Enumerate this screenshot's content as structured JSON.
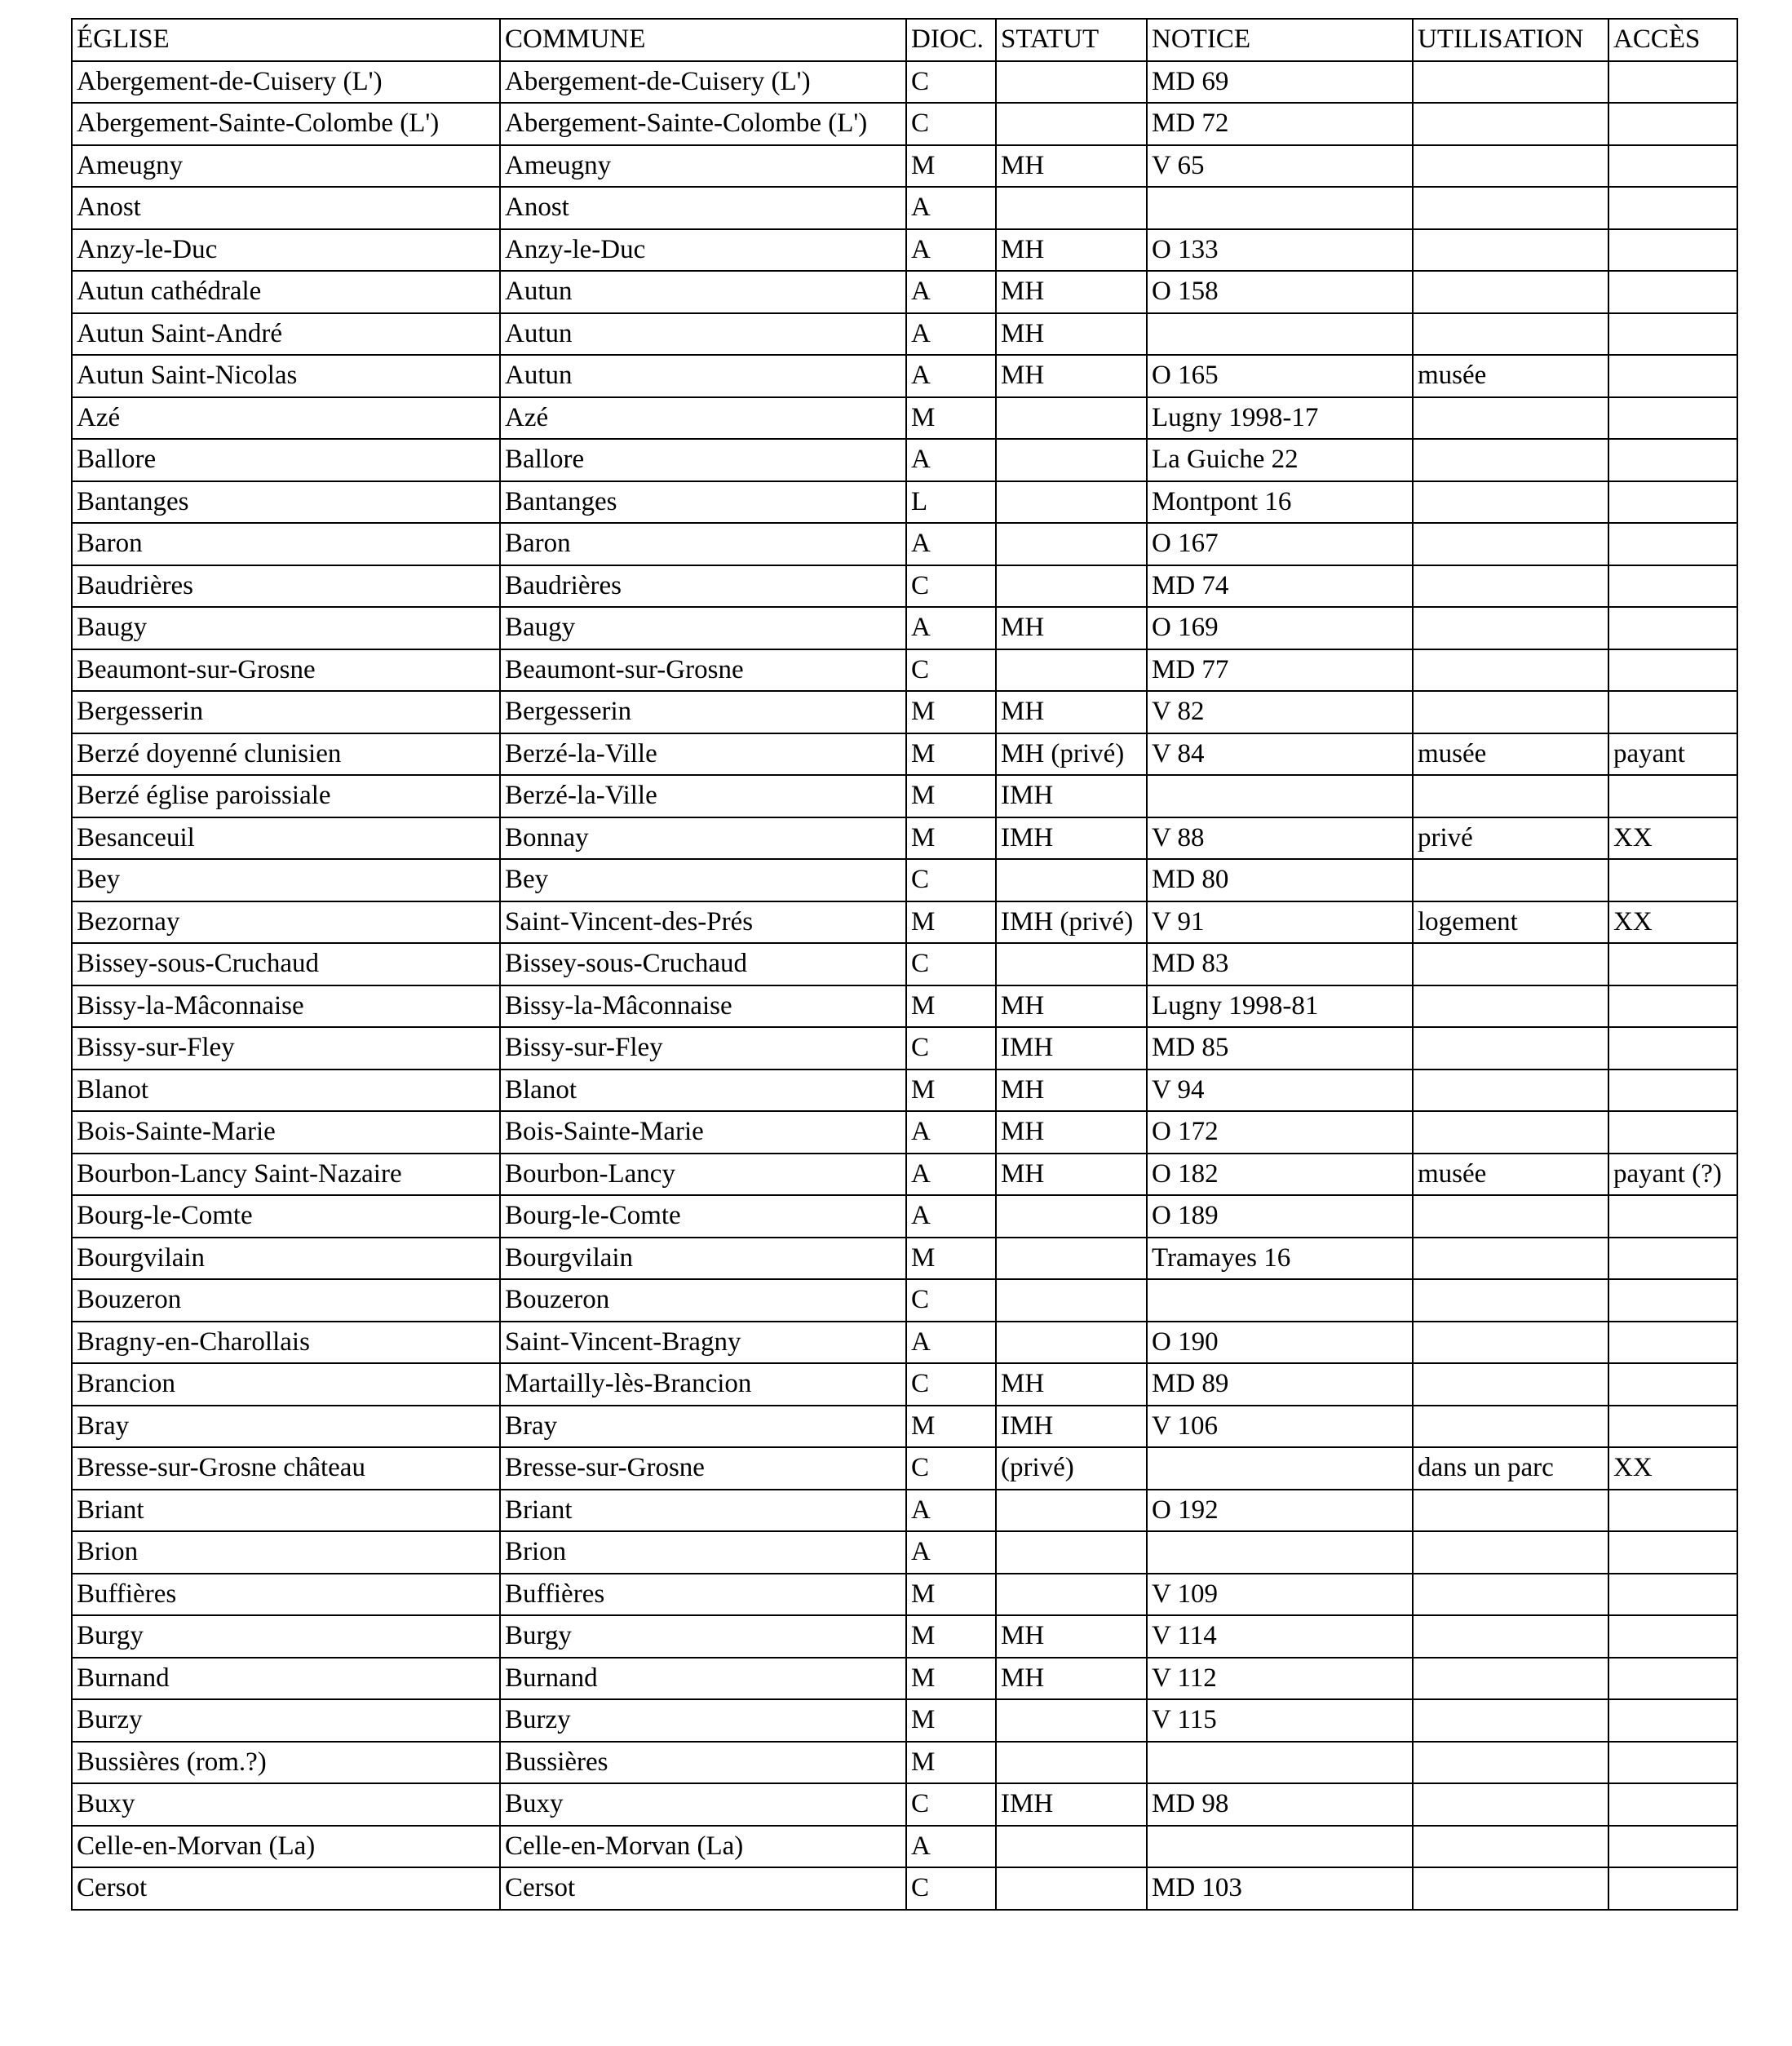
{
  "table": {
    "header": [
      "ÉGLISE",
      "COMMUNE",
      "DIOC.",
      "STATUT",
      "NOTICE",
      "UTILISATION",
      "ACCÈS"
    ],
    "rows": [
      [
        "Abergement-de-Cuisery (L')",
        "Abergement-de-Cuisery (L')",
        "C",
        null,
        "MD 69",
        null,
        null
      ],
      [
        "Abergement-Sainte-Colombe (L')",
        "Abergement-Sainte-Colombe (L')",
        "C",
        null,
        "MD 72",
        null,
        null
      ],
      [
        "Ameugny",
        "Ameugny",
        "M",
        "MH",
        "V 65",
        null,
        null
      ],
      [
        "Anost",
        "Anost",
        "A",
        null,
        null,
        null,
        null
      ],
      [
        "Anzy-le-Duc",
        "Anzy-le-Duc",
        "A",
        "MH",
        "O 133",
        null,
        null
      ],
      [
        "Autun cathédrale",
        "Autun",
        "A",
        "MH",
        "O 158",
        null,
        null
      ],
      [
        "Autun Saint-André",
        "Autun",
        "A",
        "MH",
        null,
        null,
        null
      ],
      [
        "Autun Saint-Nicolas",
        "Autun",
        "A",
        "MH",
        "O 165",
        "musée",
        null
      ],
      [
        "Azé",
        "Azé",
        "M",
        null,
        "Lugny 1998-17",
        null,
        null
      ],
      [
        "Ballore",
        "Ballore",
        "A",
        null,
        "La Guiche 22",
        null,
        null
      ],
      [
        "Bantanges",
        "Bantanges",
        "L",
        null,
        "Montpont 16",
        null,
        null
      ],
      [
        "Baron",
        "Baron",
        "A",
        null,
        "O 167",
        null,
        null
      ],
      [
        "Baudrières",
        "Baudrières",
        "C",
        null,
        "MD 74",
        null,
        null
      ],
      [
        "Baugy",
        "Baugy",
        "A",
        "MH",
        "O 169",
        null,
        null
      ],
      [
        "Beaumont-sur-Grosne",
        "Beaumont-sur-Grosne",
        "C",
        null,
        "MD 77",
        null,
        null
      ],
      [
        "Bergesserin",
        "Bergesserin",
        "M",
        "MH",
        "V 82",
        null,
        null
      ],
      [
        "Berzé doyenné clunisien",
        "Berzé-la-Ville",
        "M",
        "MH (privé)",
        "V 84",
        "musée",
        "payant"
      ],
      [
        "Berzé église paroissiale",
        "Berzé-la-Ville",
        "M",
        "IMH",
        null,
        null,
        null
      ],
      [
        "Besanceuil",
        "Bonnay",
        "M",
        "IMH",
        "V 88",
        "privé",
        "XX"
      ],
      [
        "Bey",
        "Bey",
        "C",
        null,
        "MD 80",
        null,
        null
      ],
      [
        "Bezornay",
        "Saint-Vincent-des-Prés",
        "M",
        "IMH (privé)",
        "V 91",
        "logement",
        "XX"
      ],
      [
        "Bissey-sous-Cruchaud",
        "Bissey-sous-Cruchaud",
        "C",
        null,
        "MD 83",
        null,
        null
      ],
      [
        "Bissy-la-Mâconnaise",
        "Bissy-la-Mâconnaise",
        "M",
        "MH",
        "Lugny 1998-81",
        null,
        null
      ],
      [
        "Bissy-sur-Fley",
        "Bissy-sur-Fley",
        "C",
        "IMH",
        "MD 85",
        null,
        null
      ],
      [
        "Blanot",
        "Blanot",
        "M",
        "MH",
        "V 94",
        null,
        null
      ],
      [
        "Bois-Sainte-Marie",
        "Bois-Sainte-Marie",
        "A",
        "MH",
        "O 172",
        null,
        null
      ],
      [
        "Bourbon-Lancy Saint-Nazaire",
        "Bourbon-Lancy",
        "A",
        "MH",
        "O 182",
        "musée",
        "payant (?)"
      ],
      [
        "Bourg-le-Comte",
        "Bourg-le-Comte",
        "A",
        null,
        "O 189",
        null,
        null
      ],
      [
        "Bourgvilain",
        "Bourgvilain",
        "M",
        null,
        "Tramayes 16",
        null,
        null
      ],
      [
        "Bouzeron",
        "Bouzeron",
        "C",
        null,
        null,
        null,
        null
      ],
      [
        "Bragny-en-Charollais",
        "Saint-Vincent-Bragny",
        "A",
        null,
        "O 190",
        null,
        null
      ],
      [
        "Brancion",
        "Martailly-lès-Brancion",
        "C",
        "MH",
        "MD 89",
        null,
        null
      ],
      [
        "Bray",
        "Bray",
        "M",
        "IMH",
        "V 106",
        null,
        null
      ],
      [
        "Bresse-sur-Grosne château",
        "Bresse-sur-Grosne",
        "C",
        "(privé)",
        null,
        "dans un parc",
        "XX"
      ],
      [
        "Briant",
        "Briant",
        "A",
        null,
        "O 192",
        null,
        null
      ],
      [
        "Brion",
        "Brion",
        "A",
        null,
        null,
        null,
        null
      ],
      [
        "Buffières",
        "Buffières",
        "M",
        null,
        "V 109",
        null,
        null
      ],
      [
        "Burgy",
        "Burgy",
        "M",
        "MH",
        "V 114",
        null,
        null
      ],
      [
        "Burnand",
        "Burnand",
        "M",
        "MH",
        "V 112",
        null,
        null
      ],
      [
        "Burzy",
        "Burzy",
        "M",
        null,
        "V 115",
        null,
        null
      ],
      [
        "Bussières (rom.?)",
        "Bussières",
        "M",
        null,
        null,
        null,
        null
      ],
      [
        "Buxy",
        "Buxy",
        "C",
        "IMH",
        "MD 98",
        null,
        null
      ],
      [
        "Celle-en-Morvan (La)",
        "Celle-en-Morvan (La)",
        "A",
        null,
        null,
        null,
        null
      ],
      [
        "Cersot",
        "Cersot",
        "C",
        null,
        "MD 103",
        null,
        null
      ]
    ]
  }
}
